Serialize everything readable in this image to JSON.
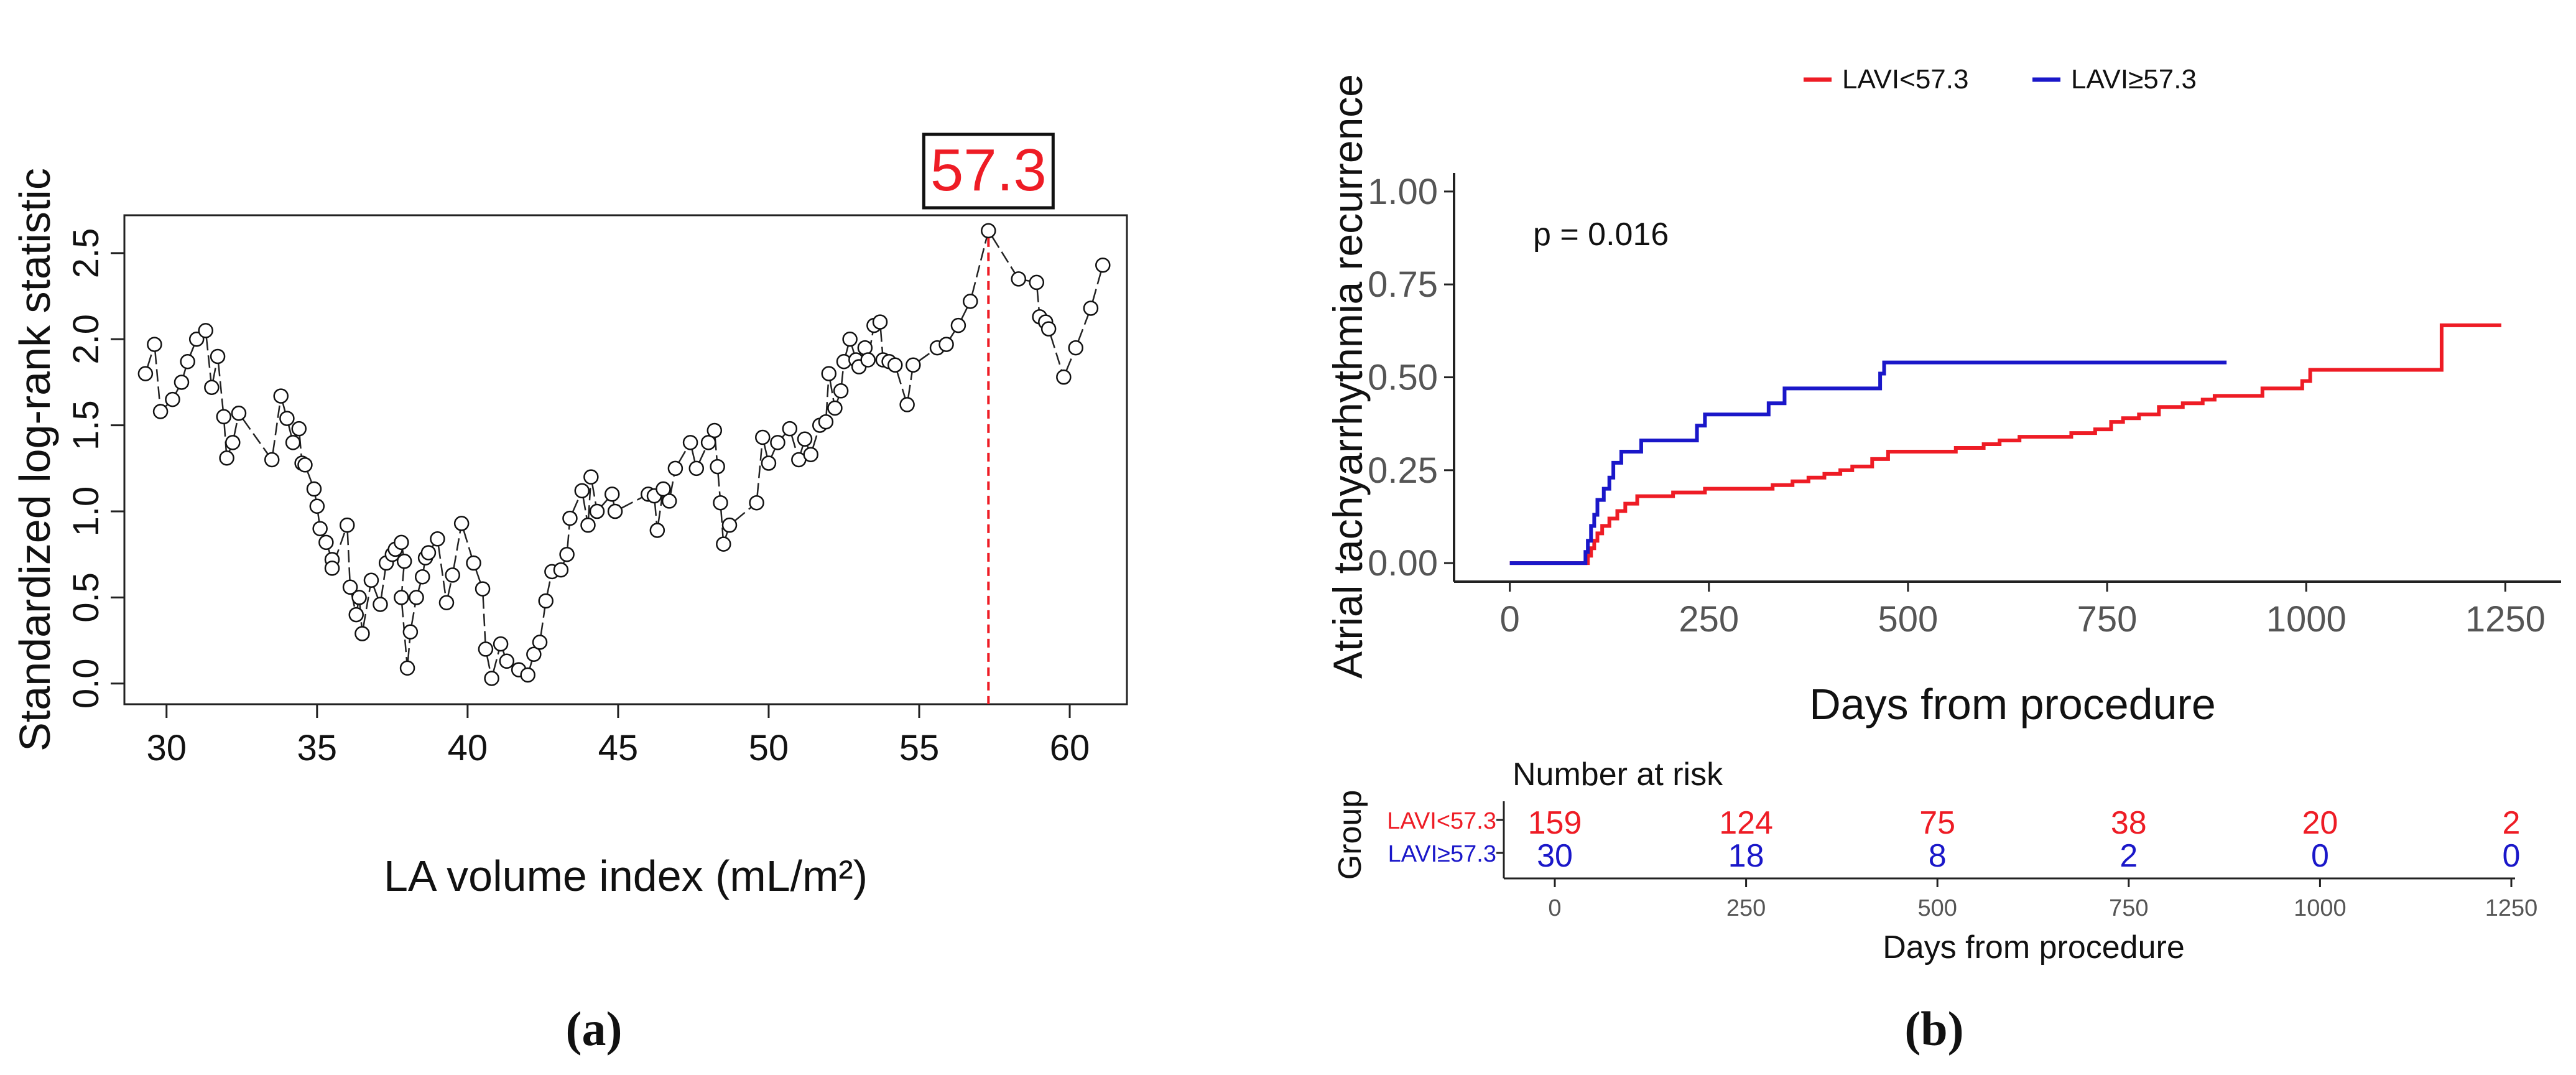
{
  "panels": {
    "a": {
      "label": "(a)"
    },
    "b": {
      "label": "(b)"
    }
  },
  "colors": {
    "red": "#ee1c25",
    "blue": "#1a17c9",
    "axis": "#222222",
    "tick_text": "#555555"
  },
  "chart_data": [
    {
      "id": "panel_a",
      "type": "scatter",
      "title": "",
      "xlabel": "LA volume index (mL/m²)",
      "ylabel": "Standardized log-rank statistic",
      "xlim": [
        28.6,
        61.9
      ],
      "ylim": [
        -0.12,
        2.72
      ],
      "xticks": [
        30,
        35,
        40,
        45,
        50,
        55,
        60
      ],
      "yticks": [
        0.0,
        0.5,
        1.0,
        1.5,
        2.0,
        2.5
      ],
      "ytick_labels": [
        "0.0",
        "0.5",
        "1.0",
        "1.5",
        "2.0",
        "2.5"
      ],
      "grid": false,
      "cutoff": {
        "x": 57.3,
        "label": "57.3"
      },
      "points": [
        [
          29.3,
          1.8
        ],
        [
          29.6,
          1.97
        ],
        [
          29.8,
          1.58
        ],
        [
          30.2,
          1.65
        ],
        [
          30.5,
          1.75
        ],
        [
          30.7,
          1.87
        ],
        [
          31.0,
          2.0
        ],
        [
          31.3,
          2.05
        ],
        [
          31.5,
          1.72
        ],
        [
          31.7,
          1.9
        ],
        [
          31.9,
          1.55
        ],
        [
          32.0,
          1.31
        ],
        [
          32.2,
          1.4
        ],
        [
          32.4,
          1.57
        ],
        [
          33.5,
          1.3
        ],
        [
          33.8,
          1.67
        ],
        [
          34.0,
          1.54
        ],
        [
          34.2,
          1.4
        ],
        [
          34.4,
          1.48
        ],
        [
          34.5,
          1.28
        ],
        [
          34.6,
          1.27
        ],
        [
          34.9,
          1.13
        ],
        [
          35.0,
          1.03
        ],
        [
          35.1,
          0.9
        ],
        [
          35.3,
          0.82
        ],
        [
          35.5,
          0.72
        ],
        [
          35.5,
          0.67
        ],
        [
          36.0,
          0.92
        ],
        [
          36.1,
          0.56
        ],
        [
          36.3,
          0.4
        ],
        [
          36.4,
          0.5
        ],
        [
          36.5,
          0.29
        ],
        [
          36.8,
          0.6
        ],
        [
          37.1,
          0.46
        ],
        [
          37.3,
          0.7
        ],
        [
          37.5,
          0.75
        ],
        [
          37.6,
          0.78
        ],
        [
          37.8,
          0.82
        ],
        [
          37.9,
          0.71
        ],
        [
          37.8,
          0.5
        ],
        [
          38.0,
          0.09
        ],
        [
          38.1,
          0.3
        ],
        [
          38.3,
          0.5
        ],
        [
          38.5,
          0.62
        ],
        [
          38.6,
          0.73
        ],
        [
          38.7,
          0.76
        ],
        [
          39.0,
          0.84
        ],
        [
          39.3,
          0.47
        ],
        [
          39.5,
          0.63
        ],
        [
          39.8,
          0.93
        ],
        [
          40.2,
          0.7
        ],
        [
          40.5,
          0.55
        ],
        [
          40.6,
          0.2
        ],
        [
          40.8,
          0.03
        ],
        [
          41.1,
          0.23
        ],
        [
          41.3,
          0.13
        ],
        [
          41.7,
          0.08
        ],
        [
          42.0,
          0.05
        ],
        [
          42.2,
          0.17
        ],
        [
          42.4,
          0.24
        ],
        [
          42.6,
          0.48
        ],
        [
          42.8,
          0.65
        ],
        [
          43.1,
          0.66
        ],
        [
          43.3,
          0.75
        ],
        [
          43.4,
          0.96
        ],
        [
          43.8,
          1.12
        ],
        [
          44.0,
          0.92
        ],
        [
          44.1,
          1.2
        ],
        [
          44.3,
          1.0
        ],
        [
          44.8,
          1.1
        ],
        [
          44.9,
          1.0
        ],
        [
          46.0,
          1.1
        ],
        [
          46.2,
          1.09
        ],
        [
          46.3,
          0.89
        ],
        [
          46.5,
          1.13
        ],
        [
          46.7,
          1.06
        ],
        [
          46.9,
          1.25
        ],
        [
          47.4,
          1.4
        ],
        [
          47.6,
          1.25
        ],
        [
          48.0,
          1.4
        ],
        [
          48.2,
          1.47
        ],
        [
          48.3,
          1.26
        ],
        [
          48.4,
          1.05
        ],
        [
          48.5,
          0.81
        ],
        [
          48.7,
          0.92
        ],
        [
          49.6,
          1.05
        ],
        [
          49.8,
          1.43
        ],
        [
          50.0,
          1.28
        ],
        [
          50.3,
          1.4
        ],
        [
          50.7,
          1.48
        ],
        [
          51.0,
          1.3
        ],
        [
          51.2,
          1.42
        ],
        [
          51.4,
          1.33
        ],
        [
          51.7,
          1.5
        ],
        [
          51.9,
          1.52
        ],
        [
          52.0,
          1.8
        ],
        [
          52.2,
          1.6
        ],
        [
          52.4,
          1.7
        ],
        [
          52.5,
          1.87
        ],
        [
          52.7,
          2.0
        ],
        [
          52.9,
          1.88
        ],
        [
          53.0,
          1.84
        ],
        [
          53.2,
          1.95
        ],
        [
          53.3,
          1.88
        ],
        [
          53.5,
          2.08
        ],
        [
          53.7,
          2.1
        ],
        [
          53.8,
          1.88
        ],
        [
          54.0,
          1.87
        ],
        [
          54.2,
          1.85
        ],
        [
          54.6,
          1.62
        ],
        [
          54.8,
          1.85
        ],
        [
          55.6,
          1.95
        ],
        [
          55.9,
          1.97
        ],
        [
          56.3,
          2.08
        ],
        [
          56.7,
          2.22
        ],
        [
          57.3,
          2.63
        ],
        [
          58.3,
          2.35
        ],
        [
          58.9,
          2.33
        ],
        [
          59.0,
          2.13
        ],
        [
          59.2,
          2.1
        ],
        [
          59.3,
          2.06
        ],
        [
          59.8,
          1.78
        ],
        [
          60.2,
          1.95
        ],
        [
          60.7,
          2.18
        ],
        [
          61.1,
          2.43
        ]
      ]
    },
    {
      "id": "panel_b",
      "type": "line",
      "step": true,
      "title": "",
      "xlabel": "Days from procedure",
      "ylabel": "Atrial tachyarrhythmia recurrence",
      "xlim": [
        -70,
        1320
      ],
      "ylim": [
        -0.05,
        1.05
      ],
      "xticks": [
        0,
        250,
        500,
        750,
        1000,
        1250
      ],
      "yticks": [
        0.0,
        0.25,
        0.5,
        0.75,
        1.0
      ],
      "ytick_labels": [
        "0.00",
        "0.25",
        "0.50",
        "0.75",
        "1.00"
      ],
      "grid": false,
      "legend": {
        "position": "top",
        "entries": [
          "LAVI<57.3",
          "LAVI≥57.3"
        ]
      },
      "annotation": "p = 0.016",
      "series": [
        {
          "name": "LAVI<57.3",
          "color": "#ee1c25",
          "points": [
            [
              0,
              0
            ],
            [
              95,
              0
            ],
            [
              98,
              0.02
            ],
            [
              102,
              0.04
            ],
            [
              106,
              0.06
            ],
            [
              110,
              0.08
            ],
            [
              116,
              0.1
            ],
            [
              125,
              0.12
            ],
            [
              135,
              0.14
            ],
            [
              145,
              0.16
            ],
            [
              160,
              0.18
            ],
            [
              205,
              0.19
            ],
            [
              245,
              0.2
            ],
            [
              330,
              0.21
            ],
            [
              355,
              0.22
            ],
            [
              375,
              0.23
            ],
            [
              395,
              0.24
            ],
            [
              415,
              0.25
            ],
            [
              430,
              0.26
            ],
            [
              455,
              0.28
            ],
            [
              475,
              0.3
            ],
            [
              560,
              0.31
            ],
            [
              595,
              0.32
            ],
            [
              615,
              0.33
            ],
            [
              640,
              0.34
            ],
            [
              705,
              0.35
            ],
            [
              735,
              0.36
            ],
            [
              755,
              0.38
            ],
            [
              770,
              0.39
            ],
            [
              790,
              0.4
            ],
            [
              815,
              0.42
            ],
            [
              845,
              0.43
            ],
            [
              870,
              0.44
            ],
            [
              885,
              0.45
            ],
            [
              945,
              0.47
            ],
            [
              995,
              0.49
            ],
            [
              1005,
              0.52
            ],
            [
              1170,
              0.64
            ],
            [
              1245,
              0.64
            ]
          ]
        },
        {
          "name": "LAVI≥57.3",
          "color": "#1a17c9",
          "points": [
            [
              0,
              0
            ],
            [
              92,
              0
            ],
            [
              95,
              0.03
            ],
            [
              98,
              0.06
            ],
            [
              102,
              0.1
            ],
            [
              106,
              0.13
            ],
            [
              110,
              0.17
            ],
            [
              118,
              0.2
            ],
            [
              125,
              0.23
            ],
            [
              130,
              0.27
            ],
            [
              140,
              0.3
            ],
            [
              165,
              0.33
            ],
            [
              235,
              0.37
            ],
            [
              245,
              0.4
            ],
            [
              325,
              0.43
            ],
            [
              345,
              0.47
            ],
            [
              465,
              0.51
            ],
            [
              470,
              0.54
            ],
            [
              900,
              0.54
            ]
          ]
        }
      ]
    },
    {
      "id": "panel_b_risk_table",
      "type": "table",
      "title": "Number at risk",
      "ylabel": "Group",
      "xlabel": "Days from procedure",
      "xticks": [
        0,
        250,
        500,
        750,
        1000,
        1250
      ],
      "rows": [
        {
          "name": "LAVI<57.3",
          "color": "#ee1c25",
          "values": [
            "159",
            "124",
            "75",
            "38",
            "20",
            "2"
          ]
        },
        {
          "name": "LAVI≥57.3",
          "color": "#1a17c9",
          "values": [
            "30",
            "18",
            "8",
            "2",
            "0",
            "0"
          ]
        }
      ]
    }
  ]
}
